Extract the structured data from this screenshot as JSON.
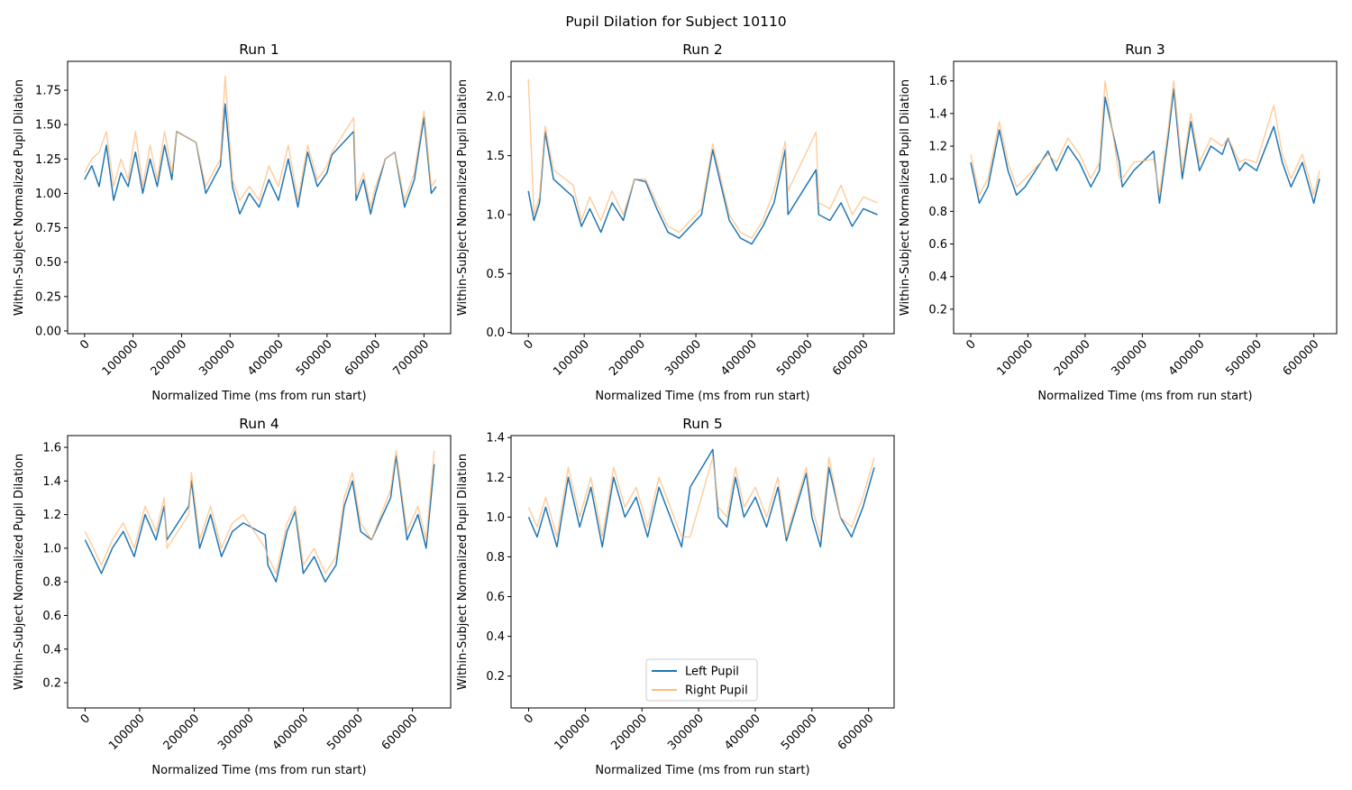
{
  "figure": {
    "suptitle": "Pupil Dilation for Subject 10110"
  },
  "legend": {
    "placement": "lower-center of Run 5",
    "entries": [
      {
        "label": "Left Pupil",
        "color": "#1f77b4"
      },
      {
        "label": "Right Pupil",
        "color": "#ffbb78"
      }
    ]
  },
  "chart_data": [
    {
      "type": "line",
      "title": "Run 1",
      "xlabel": "Normalized Time (ms from run start)",
      "ylabel": "Within-Subject Normalized Pupil Dilation",
      "xlim": [
        -35000,
        755000
      ],
      "ylim": [
        -0.02,
        1.96
      ],
      "xticks": [
        0,
        100000,
        200000,
        300000,
        400000,
        500000,
        600000,
        700000
      ],
      "yticks": [
        0.0,
        0.25,
        0.5,
        0.75,
        1.0,
        1.25,
        1.5,
        1.75
      ],
      "ytick_decimals": 2,
      "series": [
        {
          "name": "Left Pupil",
          "color": "#1f77b4",
          "x": [
            0,
            15000,
            30000,
            45000,
            60000,
            75000,
            90000,
            105000,
            120000,
            135000,
            150000,
            165000,
            180000,
            190000,
            230000,
            250000,
            265000,
            280000,
            290000,
            305000,
            320000,
            340000,
            360000,
            380000,
            400000,
            420000,
            440000,
            460000,
            480000,
            500000,
            510000,
            555000,
            560000,
            575000,
            590000,
            600000,
            620000,
            640000,
            660000,
            680000,
            700000,
            715000,
            725000
          ],
          "y": [
            1.1,
            1.2,
            1.05,
            1.35,
            0.95,
            1.15,
            1.05,
            1.3,
            1.0,
            1.25,
            1.05,
            1.35,
            1.1,
            1.45,
            1.37,
            1.0,
            1.1,
            1.2,
            1.65,
            1.05,
            0.85,
            1.0,
            0.9,
            1.1,
            0.95,
            1.25,
            0.9,
            1.3,
            1.05,
            1.15,
            1.28,
            1.45,
            0.95,
            1.1,
            0.85,
            1.0,
            1.25,
            1.3,
            0.9,
            1.1,
            1.55,
            1.0,
            1.05
          ]
        },
        {
          "name": "Right Pupil",
          "color": "#ffbb78",
          "x": [
            0,
            15000,
            30000,
            45000,
            60000,
            75000,
            90000,
            105000,
            120000,
            135000,
            150000,
            165000,
            180000,
            190000,
            230000,
            250000,
            265000,
            280000,
            290000,
            305000,
            320000,
            340000,
            360000,
            380000,
            400000,
            420000,
            440000,
            460000,
            480000,
            500000,
            510000,
            555000,
            560000,
            575000,
            590000,
            600000,
            620000,
            640000,
            660000,
            680000,
            700000,
            715000,
            725000
          ],
          "y": [
            1.15,
            1.25,
            1.3,
            1.45,
            1.05,
            1.25,
            1.1,
            1.45,
            1.05,
            1.35,
            1.1,
            1.45,
            1.15,
            1.45,
            1.37,
            1.05,
            1.15,
            1.25,
            1.85,
            1.1,
            0.95,
            1.05,
            0.95,
            1.2,
            1.05,
            1.35,
            0.95,
            1.35,
            1.1,
            1.2,
            1.3,
            1.55,
            1.0,
            1.15,
            0.9,
            1.05,
            1.25,
            1.3,
            0.95,
            1.15,
            1.6,
            1.05,
            1.1
          ]
        }
      ]
    },
    {
      "type": "line",
      "title": "Run 2",
      "xlabel": "Normalized Time (ms from run start)",
      "ylabel": "Within-Subject Normalized Pupil Dilation",
      "xlim": [
        -31000,
        655000
      ],
      "ylim": [
        -0.01,
        2.3
      ],
      "xticks": [
        0,
        100000,
        200000,
        300000,
        400000,
        500000,
        600000
      ],
      "yticks": [
        0.0,
        0.5,
        1.0,
        1.5,
        2.0
      ],
      "ytick_decimals": 1,
      "series": [
        {
          "name": "Left Pupil",
          "color": "#1f77b4",
          "x": [
            0,
            10000,
            20000,
            30000,
            45000,
            80000,
            95000,
            110000,
            130000,
            150000,
            170000,
            190000,
            210000,
            230000,
            250000,
            270000,
            290000,
            310000,
            330000,
            345000,
            360000,
            380000,
            400000,
            420000,
            440000,
            460000,
            465000,
            515000,
            520000,
            540000,
            560000,
            580000,
            600000,
            625000
          ],
          "y": [
            1.2,
            0.95,
            1.1,
            1.7,
            1.3,
            1.15,
            0.9,
            1.05,
            0.85,
            1.1,
            0.95,
            1.3,
            1.28,
            1.05,
            0.85,
            0.8,
            0.9,
            1.0,
            1.55,
            1.25,
            0.95,
            0.8,
            0.75,
            0.9,
            1.1,
            1.55,
            1.0,
            1.38,
            1.0,
            0.95,
            1.1,
            0.9,
            1.05,
            1.0
          ]
        },
        {
          "name": "Right Pupil",
          "color": "#ffbb78",
          "x": [
            0,
            10000,
            20000,
            30000,
            45000,
            80000,
            95000,
            110000,
            130000,
            150000,
            170000,
            190000,
            210000,
            230000,
            250000,
            270000,
            290000,
            310000,
            330000,
            345000,
            360000,
            380000,
            400000,
            420000,
            440000,
            460000,
            465000,
            515000,
            520000,
            540000,
            560000,
            580000,
            600000,
            625000
          ],
          "y": [
            2.15,
            1.0,
            1.15,
            1.75,
            1.38,
            1.25,
            0.95,
            1.15,
            0.95,
            1.2,
            1.0,
            1.3,
            1.3,
            1.1,
            0.9,
            0.85,
            0.95,
            1.05,
            1.6,
            1.3,
            1.0,
            0.85,
            0.8,
            0.95,
            1.2,
            1.62,
            1.2,
            1.7,
            1.1,
            1.05,
            1.25,
            1.0,
            1.15,
            1.1
          ]
        }
      ]
    },
    {
      "type": "line",
      "title": "Run 3",
      "xlabel": "Normalized Time (ms from run start)",
      "ylabel": "Within-Subject Normalized Pupil Dilation",
      "xlim": [
        -30000,
        640000
      ],
      "ylim": [
        0.05,
        1.72
      ],
      "xticks": [
        0,
        100000,
        200000,
        300000,
        400000,
        500000,
        600000
      ],
      "yticks": [
        0.2,
        0.4,
        0.6,
        0.8,
        1.0,
        1.2,
        1.4,
        1.6
      ],
      "ytick_decimals": 1,
      "series": [
        {
          "name": "Left Pupil",
          "color": "#1f77b4",
          "x": [
            0,
            15000,
            30000,
            50000,
            65000,
            80000,
            95000,
            135000,
            150000,
            170000,
            190000,
            210000,
            225000,
            235000,
            260000,
            265000,
            285000,
            320000,
            330000,
            345000,
            355000,
            370000,
            385000,
            400000,
            420000,
            440000,
            450000,
            470000,
            480000,
            500000,
            530000,
            545000,
            560000,
            580000,
            600000,
            610000
          ],
          "y": [
            1.1,
            0.85,
            0.95,
            1.3,
            1.05,
            0.9,
            0.95,
            1.17,
            1.05,
            1.2,
            1.1,
            0.95,
            1.05,
            1.5,
            1.1,
            0.95,
            1.05,
            1.17,
            0.85,
            1.25,
            1.55,
            1.0,
            1.35,
            1.05,
            1.2,
            1.15,
            1.25,
            1.05,
            1.1,
            1.05,
            1.32,
            1.1,
            0.95,
            1.1,
            0.85,
            1.0
          ]
        },
        {
          "name": "Right Pupil",
          "color": "#ffbb78",
          "x": [
            0,
            15000,
            30000,
            50000,
            65000,
            80000,
            95000,
            135000,
            150000,
            170000,
            190000,
            210000,
            225000,
            235000,
            260000,
            265000,
            285000,
            320000,
            330000,
            345000,
            355000,
            370000,
            385000,
            400000,
            420000,
            440000,
            450000,
            470000,
            480000,
            500000,
            530000,
            545000,
            560000,
            580000,
            600000,
            610000
          ],
          "y": [
            1.15,
            0.9,
            1.0,
            1.35,
            1.1,
            0.95,
            1.0,
            1.15,
            1.1,
            1.25,
            1.15,
            1.0,
            1.1,
            1.6,
            1.0,
            1.0,
            1.1,
            1.12,
            0.9,
            1.3,
            1.6,
            1.05,
            1.4,
            1.1,
            1.25,
            1.2,
            1.25,
            1.1,
            1.12,
            1.1,
            1.45,
            1.15,
            1.0,
            1.15,
            0.9,
            1.05
          ]
        }
      ]
    },
    {
      "type": "line",
      "title": "Run 4",
      "xlabel": "Normalized Time (ms from run start)",
      "ylabel": "Within-Subject Normalized Pupil Dilation",
      "xlim": [
        -32000,
        670000
      ],
      "ylim": [
        0.05,
        1.67
      ],
      "xticks": [
        0,
        100000,
        200000,
        300000,
        400000,
        500000,
        600000
      ],
      "yticks": [
        0.2,
        0.4,
        0.6,
        0.8,
        1.0,
        1.2,
        1.4,
        1.6
      ],
      "ytick_decimals": 1,
      "series": [
        {
          "name": "Left Pupil",
          "color": "#1f77b4",
          "x": [
            0,
            15000,
            30000,
            50000,
            70000,
            90000,
            110000,
            130000,
            145000,
            150000,
            190000,
            195000,
            210000,
            230000,
            250000,
            270000,
            290000,
            330000,
            335000,
            350000,
            370000,
            385000,
            400000,
            420000,
            440000,
            460000,
            475000,
            490000,
            505000,
            525000,
            560000,
            570000,
            590000,
            610000,
            625000,
            640000
          ],
          "y": [
            1.05,
            0.95,
            0.85,
            1.0,
            1.1,
            0.95,
            1.2,
            1.05,
            1.25,
            1.05,
            1.25,
            1.4,
            1.0,
            1.2,
            0.95,
            1.1,
            1.15,
            1.08,
            0.9,
            0.8,
            1.1,
            1.22,
            0.85,
            0.95,
            0.8,
            0.9,
            1.25,
            1.4,
            1.1,
            1.05,
            1.3,
            1.55,
            1.05,
            1.2,
            1.0,
            1.5
          ]
        },
        {
          "name": "Right Pupil",
          "color": "#ffbb78",
          "x": [
            0,
            15000,
            30000,
            50000,
            70000,
            90000,
            110000,
            130000,
            145000,
            150000,
            190000,
            195000,
            210000,
            230000,
            250000,
            270000,
            290000,
            330000,
            335000,
            350000,
            370000,
            385000,
            400000,
            420000,
            440000,
            460000,
            475000,
            490000,
            505000,
            525000,
            560000,
            570000,
            590000,
            610000,
            625000,
            640000
          ],
          "y": [
            1.1,
            1.0,
            0.9,
            1.05,
            1.15,
            1.0,
            1.25,
            1.1,
            1.3,
            1.0,
            1.2,
            1.45,
            1.05,
            1.25,
            1.0,
            1.15,
            1.2,
            1.0,
            0.95,
            0.85,
            1.15,
            1.25,
            0.9,
            1.0,
            0.85,
            0.95,
            1.3,
            1.45,
            1.15,
            1.05,
            1.35,
            1.58,
            1.1,
            1.25,
            1.05,
            1.58
          ]
        }
      ]
    },
    {
      "type": "line",
      "title": "Run 5",
      "xlabel": "Normalized Time (ms from run start)",
      "ylabel": "Within-Subject Normalized Pupil Dilation",
      "xlim": [
        -31000,
        645000
      ],
      "ylim": [
        0.04,
        1.41
      ],
      "xticks": [
        0,
        100000,
        200000,
        300000,
        400000,
        500000,
        600000
      ],
      "yticks": [
        0.2,
        0.4,
        0.6,
        0.8,
        1.0,
        1.2,
        1.4
      ],
      "ytick_decimals": 1,
      "series": [
        {
          "name": "Left Pupil",
          "color": "#1f77b4",
          "x": [
            0,
            15000,
            30000,
            50000,
            70000,
            90000,
            110000,
            130000,
            150000,
            170000,
            190000,
            210000,
            230000,
            250000,
            270000,
            285000,
            325000,
            335000,
            350000,
            365000,
            380000,
            400000,
            420000,
            440000,
            455000,
            490000,
            500000,
            515000,
            530000,
            550000,
            570000,
            590000,
            610000
          ],
          "y": [
            1.0,
            0.9,
            1.05,
            0.85,
            1.2,
            0.95,
            1.15,
            0.85,
            1.2,
            1.0,
            1.1,
            0.9,
            1.15,
            1.0,
            0.85,
            1.15,
            1.34,
            1.0,
            0.95,
            1.2,
            1.0,
            1.1,
            0.95,
            1.15,
            0.88,
            1.22,
            1.0,
            0.85,
            1.25,
            1.0,
            0.9,
            1.05,
            1.25
          ]
        },
        {
          "name": "Right Pupil",
          "color": "#ffbb78",
          "x": [
            0,
            15000,
            30000,
            50000,
            70000,
            90000,
            110000,
            130000,
            150000,
            170000,
            190000,
            210000,
            230000,
            250000,
            270000,
            285000,
            325000,
            335000,
            350000,
            365000,
            380000,
            400000,
            420000,
            440000,
            455000,
            490000,
            500000,
            515000,
            530000,
            550000,
            570000,
            590000,
            610000
          ],
          "y": [
            1.05,
            0.95,
            1.1,
            0.9,
            1.25,
            1.0,
            1.2,
            0.9,
            1.25,
            1.05,
            1.15,
            0.95,
            1.2,
            1.05,
            0.9,
            0.9,
            1.3,
            1.05,
            1.0,
            1.25,
            1.05,
            1.15,
            1.0,
            1.2,
            0.9,
            1.25,
            1.05,
            0.9,
            1.3,
            1.0,
            0.95,
            1.1,
            1.3
          ]
        }
      ]
    }
  ]
}
